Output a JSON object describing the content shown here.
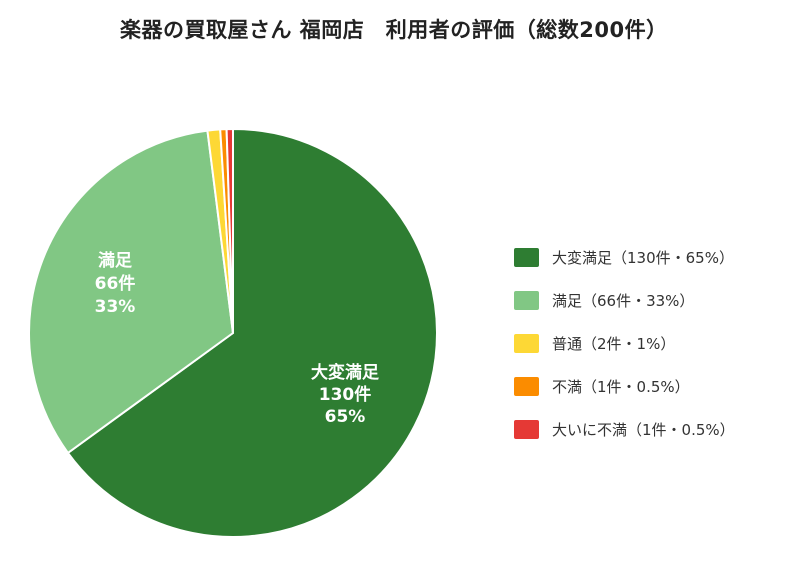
{
  "chart_data": {
    "type": "pie",
    "title": "楽器の買取屋さん 福岡店　利用者の評価（総数200件）",
    "total": 200,
    "categories": [
      "大変満足",
      "満足",
      "普通",
      "不満",
      "大いに不満"
    ],
    "values": [
      130,
      66,
      2,
      1,
      1
    ],
    "percentages": [
      65,
      33,
      1,
      0.5,
      0.5
    ],
    "colors": [
      "#2e7d32",
      "#81c784",
      "#fdd835",
      "#fb8c00",
      "#e53935"
    ],
    "legend_position": "right",
    "slice_labels": [
      {
        "name": "大変満足",
        "count": "130件",
        "pct": "65%"
      },
      {
        "name": "満足",
        "count": "66件",
        "pct": "33%"
      }
    ]
  },
  "title": "楽器の買取屋さん 福岡店　利用者の評価（総数200件）",
  "legend": [
    {
      "label": "大変満足（130件・65%）",
      "color": "#2e7d32"
    },
    {
      "label": "満足（66件・33%）",
      "color": "#81c784"
    },
    {
      "label": "普通（2件・1%）",
      "color": "#fdd835"
    },
    {
      "label": "不満（1件・0.5%）",
      "color": "#fb8c00"
    },
    {
      "label": "大いに不満（1件・0.5%）",
      "color": "#e53935"
    }
  ],
  "labels": {
    "very_satisfied": {
      "name": "大変満足",
      "count": "130件",
      "pct": "65%"
    },
    "satisfied": {
      "name": "満足",
      "count": "66件",
      "pct": "33%"
    }
  }
}
